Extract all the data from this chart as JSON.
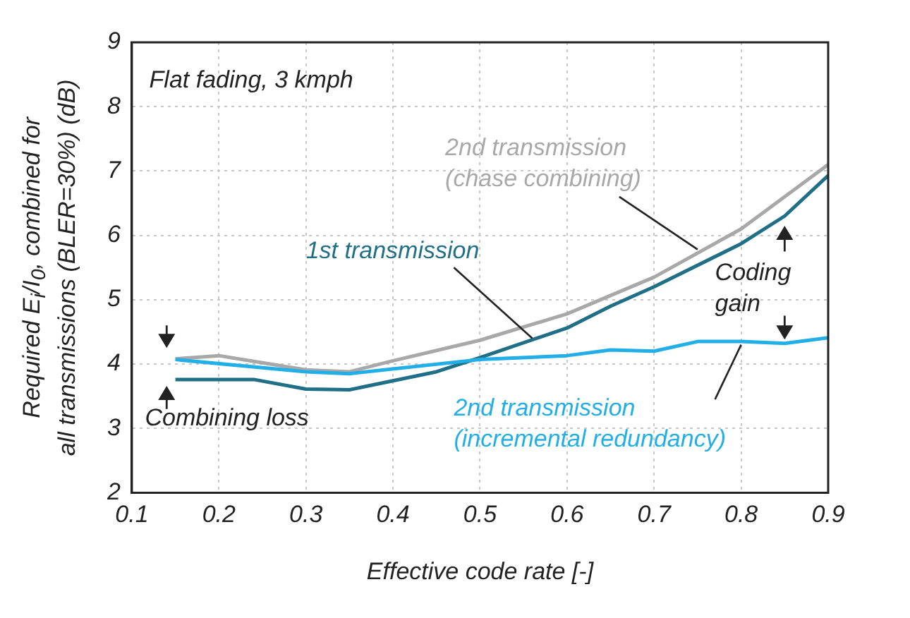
{
  "chart_data": {
    "type": "line",
    "xlabel": "Effective code rate [-]",
    "ylabel": "Required E$_{i}$/I$_{0}$, combined for\nall transmissions (BLER=30%) (dB)",
    "xlim": [
      0.1,
      0.9
    ],
    "ylim": [
      2,
      9
    ],
    "xticks": [
      0.1,
      0.2,
      0.3,
      0.4,
      0.5,
      0.6,
      0.7,
      0.8,
      0.9
    ],
    "yticks": [
      2,
      3,
      4,
      5,
      6,
      7,
      8,
      9
    ],
    "grid": true,
    "legend": false,
    "marker": "none",
    "line_style": "solid",
    "annotations": [
      "Flat fading, 3 kmph",
      "Combining loss",
      "Coding gain"
    ],
    "series": [
      {
        "name": "2nd transmission (chase combining)",
        "color": "#a8a8a8",
        "x": [
          0.15,
          0.2,
          0.3,
          0.35,
          0.4,
          0.5,
          0.6,
          0.7,
          0.8,
          0.9
        ],
        "values": [
          4.08,
          4.13,
          3.91,
          3.88,
          4.05,
          4.37,
          4.78,
          5.35,
          6.1,
          7.1
        ]
      },
      {
        "name": "1st transmission",
        "color": "#1f6f86",
        "x": [
          0.15,
          0.24,
          0.3,
          0.35,
          0.45,
          0.5,
          0.6,
          0.65,
          0.7,
          0.8,
          0.85,
          0.9
        ],
        "values": [
          3.76,
          3.76,
          3.61,
          3.6,
          3.88,
          4.1,
          4.56,
          4.9,
          5.2,
          5.87,
          6.3,
          6.93
        ]
      },
      {
        "name": "2nd transmission (incremental redundancy)",
        "color": "#22aee6",
        "x": [
          0.15,
          0.3,
          0.35,
          0.5,
          0.6,
          0.65,
          0.7,
          0.75,
          0.8,
          0.85,
          0.9
        ],
        "values": [
          4.07,
          3.88,
          3.85,
          4.07,
          4.13,
          4.22,
          4.2,
          4.35,
          4.35,
          4.32,
          4.41
        ]
      }
    ]
  }
}
